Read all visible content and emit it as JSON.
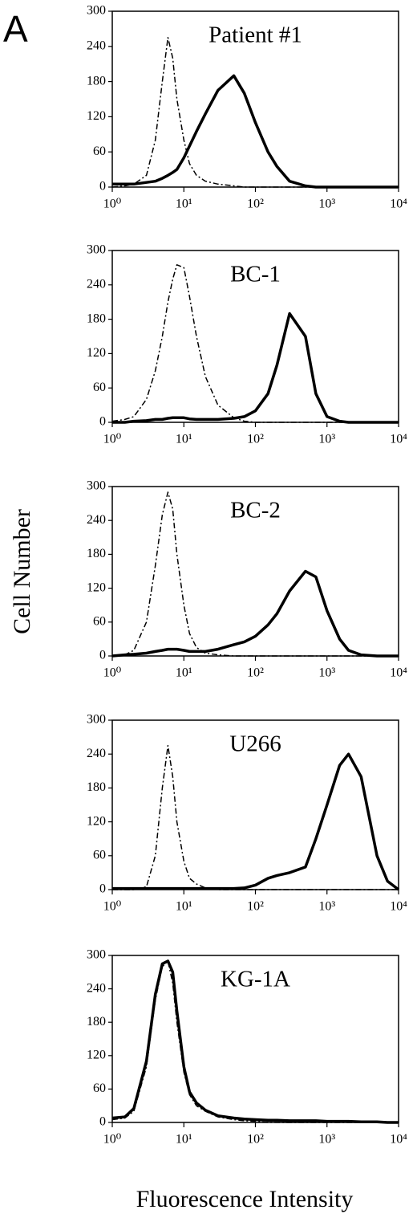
{
  "panel_label": "A",
  "ylabel": "Cell Number",
  "xlabel": "Fluorescence Intensity",
  "chart_data": [
    {
      "type": "line",
      "title": "Patient #1",
      "log_x": true,
      "xlim": [
        1,
        10000
      ],
      "ylim": [
        0,
        300
      ],
      "xticks": [
        {
          "value": 1,
          "label": "10⁰"
        },
        {
          "value": 10,
          "label": "10¹"
        },
        {
          "value": 100,
          "label": "10²"
        },
        {
          "value": 1000,
          "label": "10³"
        },
        {
          "value": 10000,
          "label": "10⁴"
        }
      ],
      "yticks": [
        0,
        60,
        120,
        180,
        240,
        300
      ],
      "x": [
        1,
        1.5,
        2,
        3,
        4,
        5,
        6,
        7,
        8,
        10,
        12,
        15,
        20,
        30,
        50,
        70,
        100,
        150,
        200,
        300,
        500,
        700,
        1000,
        1500,
        2000,
        3000,
        5000,
        7000,
        10000
      ],
      "series": [
        {
          "color": "#000000",
          "line_style": "dash-dot",
          "values": [
            0,
            2,
            5,
            20,
            80,
            180,
            255,
            220,
            150,
            80,
            40,
            20,
            10,
            5,
            2,
            0,
            0,
            0,
            0,
            0,
            0,
            0,
            0,
            0,
            0,
            0,
            0,
            0,
            0
          ]
        },
        {
          "color": "#000000",
          "line_style": "solid",
          "values": [
            5,
            5,
            5,
            8,
            10,
            15,
            20,
            25,
            30,
            50,
            70,
            95,
            125,
            165,
            190,
            160,
            110,
            60,
            35,
            10,
            2,
            0,
            0,
            0,
            0,
            0,
            0,
            0,
            0
          ]
        }
      ]
    },
    {
      "type": "line",
      "title": "BC-1",
      "log_x": true,
      "xlim": [
        1,
        10000
      ],
      "ylim": [
        0,
        300
      ],
      "xticks": [
        {
          "value": 1,
          "label": "10⁰"
        },
        {
          "value": 10,
          "label": "10¹"
        },
        {
          "value": 100,
          "label": "10²"
        },
        {
          "value": 1000,
          "label": "10³"
        },
        {
          "value": 10000,
          "label": "10⁴"
        }
      ],
      "yticks": [
        0,
        60,
        120,
        180,
        240,
        300
      ],
      "x": [
        1,
        1.5,
        2,
        3,
        4,
        5,
        6,
        7,
        8,
        10,
        12,
        15,
        20,
        30,
        50,
        70,
        100,
        150,
        200,
        300,
        500,
        700,
        1000,
        1500,
        2000,
        3000,
        5000,
        7000,
        10000
      ],
      "series": [
        {
          "color": "#000000",
          "line_style": "dash-dot",
          "values": [
            2,
            5,
            10,
            40,
            90,
            150,
            210,
            250,
            275,
            270,
            220,
            150,
            80,
            30,
            8,
            2,
            0,
            0,
            0,
            0,
            0,
            0,
            0,
            0,
            0,
            0,
            0,
            0,
            0
          ]
        },
        {
          "color": "#000000",
          "line_style": "solid",
          "values": [
            0,
            0,
            2,
            3,
            5,
            5,
            7,
            8,
            8,
            8,
            6,
            5,
            5,
            5,
            7,
            10,
            20,
            50,
            100,
            190,
            150,
            50,
            10,
            2,
            0,
            0,
            0,
            0,
            0
          ]
        }
      ]
    },
    {
      "type": "line",
      "title": "BC-2",
      "log_x": true,
      "xlim": [
        1,
        10000
      ],
      "ylim": [
        0,
        300
      ],
      "xticks": [
        {
          "value": 1,
          "label": "10⁰"
        },
        {
          "value": 10,
          "label": "10¹"
        },
        {
          "value": 100,
          "label": "10²"
        },
        {
          "value": 1000,
          "label": "10³"
        },
        {
          "value": 10000,
          "label": "10⁴"
        }
      ],
      "yticks": [
        0,
        60,
        120,
        180,
        240,
        300
      ],
      "x": [
        1,
        1.5,
        2,
        3,
        4,
        5,
        6,
        7,
        8,
        10,
        12,
        15,
        20,
        30,
        50,
        70,
        100,
        150,
        200,
        300,
        500,
        700,
        1000,
        1500,
        2000,
        3000,
        5000,
        7000,
        10000
      ],
      "series": [
        {
          "color": "#000000",
          "line_style": "dash-dot",
          "values": [
            0,
            2,
            10,
            60,
            160,
            250,
            290,
            260,
            180,
            90,
            40,
            15,
            5,
            2,
            0,
            0,
            0,
            0,
            0,
            0,
            0,
            0,
            0,
            0,
            0,
            0,
            0,
            0,
            0
          ]
        },
        {
          "color": "#000000",
          "line_style": "solid",
          "values": [
            0,
            2,
            3,
            5,
            8,
            10,
            12,
            12,
            12,
            10,
            8,
            8,
            8,
            12,
            20,
            25,
            35,
            55,
            75,
            115,
            150,
            140,
            80,
            30,
            10,
            2,
            0,
            0,
            0
          ]
        }
      ]
    },
    {
      "type": "line",
      "title": "U266",
      "log_x": true,
      "xlim": [
        1,
        10000
      ],
      "ylim": [
        0,
        300
      ],
      "xticks": [
        {
          "value": 1,
          "label": "10⁰"
        },
        {
          "value": 10,
          "label": "10¹"
        },
        {
          "value": 100,
          "label": "10²"
        },
        {
          "value": 1000,
          "label": "10³"
        },
        {
          "value": 10000,
          "label": "10⁴"
        }
      ],
      "yticks": [
        0,
        60,
        120,
        180,
        240,
        300
      ],
      "x": [
        1,
        1.5,
        2,
        3,
        4,
        5,
        6,
        7,
        8,
        10,
        12,
        15,
        20,
        30,
        50,
        70,
        100,
        150,
        200,
        300,
        500,
        700,
        1000,
        1500,
        2000,
        3000,
        5000,
        7000,
        10000
      ],
      "series": [
        {
          "color": "#000000",
          "line_style": "dash-dot",
          "values": [
            0,
            0,
            0,
            5,
            60,
            180,
            255,
            200,
            120,
            50,
            20,
            10,
            3,
            0,
            0,
            0,
            0,
            0,
            0,
            0,
            0,
            0,
            0,
            0,
            0,
            0,
            0,
            0,
            0
          ]
        },
        {
          "color": "#000000",
          "line_style": "solid",
          "values": [
            2,
            2,
            2,
            2,
            2,
            2,
            2,
            2,
            2,
            2,
            2,
            2,
            2,
            2,
            2,
            3,
            8,
            20,
            25,
            30,
            40,
            90,
            150,
            220,
            240,
            200,
            60,
            15,
            0
          ]
        }
      ]
    },
    {
      "type": "line",
      "title": "KG-1A",
      "log_x": true,
      "xlim": [
        1,
        10000
      ],
      "ylim": [
        0,
        300
      ],
      "xticks": [
        {
          "value": 1,
          "label": "10⁰"
        },
        {
          "value": 10,
          "label": "10¹"
        },
        {
          "value": 100,
          "label": "10²"
        },
        {
          "value": 1000,
          "label": "10³"
        },
        {
          "value": 10000,
          "label": "10⁴"
        }
      ],
      "yticks": [
        0,
        60,
        120,
        180,
        240,
        300
      ],
      "x": [
        1,
        1.5,
        2,
        3,
        4,
        5,
        6,
        7,
        8,
        10,
        12,
        15,
        20,
        30,
        50,
        70,
        100,
        150,
        200,
        300,
        500,
        700,
        1000,
        1500,
        2000,
        3000,
        5000,
        7000,
        10000
      ],
      "series": [
        {
          "color": "#000000",
          "line_style": "dash-dot",
          "values": [
            5,
            8,
            20,
            100,
            220,
            280,
            290,
            250,
            180,
            90,
            50,
            30,
            20,
            10,
            5,
            3,
            2,
            0,
            0,
            0,
            0,
            0,
            0,
            0,
            0,
            0,
            0,
            0,
            0
          ]
        },
        {
          "color": "#000000",
          "line_style": "solid",
          "values": [
            8,
            10,
            25,
            110,
            230,
            285,
            290,
            270,
            200,
            100,
            55,
            35,
            22,
            12,
            8,
            6,
            5,
            4,
            4,
            3,
            3,
            3,
            2,
            2,
            2,
            1,
            1,
            0,
            0
          ]
        }
      ]
    }
  ]
}
